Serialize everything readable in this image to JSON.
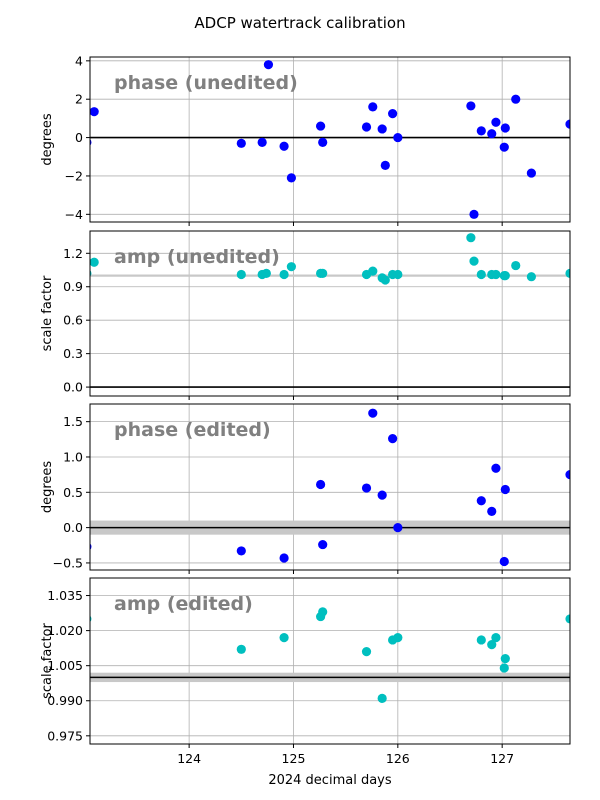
{
  "figure": {
    "title": "ADCP watertrack calibration",
    "xlabel": "2024 decimal days"
  },
  "chart_data": [
    {
      "type": "scatter",
      "id": "phase_unedited",
      "label": "phase (unedited)",
      "ylabel": "degrees",
      "xlim": [
        123.05,
        127.65
      ],
      "ylim": [
        -4.4,
        4.2
      ],
      "yticks": [
        -4,
        -2,
        0,
        2,
        4
      ],
      "ytick_labels": [
        "−4",
        "−2",
        "0",
        "2",
        "4"
      ],
      "xticks": [
        124,
        125,
        126,
        127
      ],
      "grid": true,
      "color": "#0000ff",
      "ref_line": {
        "y": 0,
        "color": "#000000"
      },
      "x": [
        123.02,
        123.09,
        124.5,
        124.7,
        124.76,
        124.91,
        124.98,
        125.26,
        125.28,
        125.7,
        125.76,
        125.85,
        125.88,
        125.95,
        126.0,
        126.7,
        126.73,
        126.8,
        126.9,
        126.94,
        127.02,
        127.03,
        127.13,
        127.28,
        127.65
      ],
      "y": [
        -0.25,
        1.35,
        -0.3,
        -0.25,
        3.8,
        -0.45,
        -2.1,
        0.6,
        -0.25,
        0.55,
        1.6,
        0.45,
        -1.45,
        1.25,
        0.0,
        1.65,
        -4.0,
        0.35,
        0.2,
        0.8,
        -0.5,
        0.5,
        2.0,
        -1.85,
        0.7
      ]
    },
    {
      "type": "scatter",
      "id": "amp_unedited",
      "label": "amp (unedited)",
      "ylabel": "scale factor",
      "xlim": [
        123.05,
        127.65
      ],
      "ylim": [
        -0.08,
        1.4
      ],
      "yticks": [
        0.0,
        0.3,
        0.6,
        0.9,
        1.2
      ],
      "ytick_labels": [
        "0.0",
        "0.3",
        "0.6",
        "0.9",
        "1.2"
      ],
      "xticks": [
        124,
        125,
        126,
        127
      ],
      "grid": true,
      "color": "#00bfbf",
      "ref_line": {
        "y": 1.0,
        "color": "#c8c8c8"
      },
      "ref_line2": {
        "y": 0.0,
        "color": "#000000"
      },
      "x": [
        123.02,
        123.09,
        124.5,
        124.7,
        124.74,
        124.91,
        124.98,
        125.26,
        125.28,
        125.7,
        125.76,
        125.85,
        125.88,
        125.95,
        126.0,
        126.7,
        126.73,
        126.8,
        126.9,
        126.94,
        127.02,
        127.03,
        127.13,
        127.28,
        127.65
      ],
      "y": [
        1.02,
        1.12,
        1.01,
        1.01,
        1.02,
        1.01,
        1.08,
        1.02,
        1.02,
        1.01,
        1.04,
        0.98,
        0.96,
        1.01,
        1.01,
        1.34,
        1.13,
        1.01,
        1.01,
        1.01,
        1.0,
        1.0,
        1.09,
        0.99,
        1.02
      ]
    },
    {
      "type": "scatter",
      "id": "phase_edited",
      "label": "phase (edited)",
      "ylabel": "degrees",
      "xlim": [
        123.05,
        127.65
      ],
      "ylim": [
        -0.6,
        1.75
      ],
      "yticks": [
        -0.5,
        0.0,
        0.5,
        1.0,
        1.5
      ],
      "ytick_labels": [
        "−0.5",
        "0.0",
        "0.5",
        "1.0",
        "1.5"
      ],
      "xticks": [
        124,
        125,
        126,
        127
      ],
      "grid": true,
      "color": "#0000ff",
      "band": {
        "y0": -0.1,
        "y1": 0.1,
        "color": "#c8c8c8"
      },
      "ref_line": {
        "y": 0,
        "color": "#000000"
      },
      "x": [
        123.02,
        124.5,
        124.91,
        125.26,
        125.28,
        125.7,
        125.76,
        125.85,
        125.95,
        126.0,
        126.8,
        126.9,
        126.94,
        127.02,
        127.03,
        127.65
      ],
      "y": [
        -0.27,
        -0.33,
        -0.43,
        0.61,
        -0.24,
        0.56,
        1.62,
        0.46,
        1.26,
        0.0,
        0.38,
        0.23,
        0.84,
        -0.48,
        0.54,
        0.75
      ]
    },
    {
      "type": "scatter",
      "id": "amp_edited",
      "label": "amp (edited)",
      "ylabel": "scale factor",
      "xlim": [
        123.05,
        127.65
      ],
      "ylim": [
        0.9715,
        1.0425
      ],
      "yticks": [
        0.975,
        0.99,
        1.005,
        1.02,
        1.035
      ],
      "ytick_labels": [
        "0.975",
        "0.990",
        "1.005",
        "1.020",
        "1.035"
      ],
      "xticks": [
        124,
        125,
        126,
        127
      ],
      "xtick_labels": [
        "124",
        "125",
        "126",
        "127"
      ],
      "grid": true,
      "color": "#00bfbf",
      "band": {
        "y0": 0.998,
        "y1": 1.002,
        "color": "#c8c8c8"
      },
      "ref_line": {
        "y": 1.0,
        "color": "#000000"
      },
      "x": [
        123.02,
        124.5,
        124.91,
        125.26,
        125.28,
        125.7,
        125.85,
        125.95,
        126.0,
        126.8,
        126.9,
        126.94,
        127.02,
        127.03,
        127.65
      ],
      "y": [
        1.025,
        1.012,
        1.017,
        1.026,
        1.028,
        1.011,
        0.991,
        1.016,
        1.017,
        1.016,
        1.014,
        1.017,
        1.004,
        1.008,
        1.025
      ]
    }
  ]
}
